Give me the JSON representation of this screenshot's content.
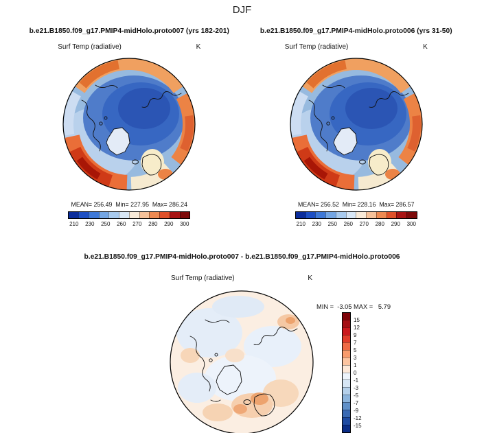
{
  "title": "DJF",
  "panels": [
    {
      "header": "b.e21.B1850.f09_g17.PMIP4-midHolo.proto007 (yrs 182-201)",
      "field_label": "Surf Temp (radiative)",
      "units": "K",
      "stats": "MEAN= 256.49  Min= 227.95  Max= 286.24"
    },
    {
      "header": "b.e21.B1850.f09_g17.PMIP4-midHolo.proto006 (yrs 31-50)",
      "field_label": "Surf Temp (radiative)",
      "units": "K",
      "stats": "MEAN= 256.52  Min= 228.16  Max= 286.57"
    }
  ],
  "diff": {
    "header": "b.e21.B1850.f09_g17.PMIP4-midHolo.proto007 - b.e21.B1850.f09_g17.PMIP4-midHolo.proto006",
    "field_label": "Surf Temp (radiative)",
    "units": "K",
    "minmax": "MIN =  -3.05 MAX =   5.79"
  },
  "scale_temp": {
    "colors": [
      "#0b2d9c",
      "#1d4fc4",
      "#3f79d8",
      "#74a6e4",
      "#a8caee",
      "#d8e7f6",
      "#f8ead8",
      "#f6c29a",
      "#ee8a52",
      "#df512a",
      "#a81414",
      "#7d0a0a"
    ],
    "labels": [
      "210",
      "230",
      "250",
      "260",
      "270",
      "280",
      "290",
      "300"
    ]
  },
  "scale_diff": {
    "colors": [
      "#7e0308",
      "#a50f15",
      "#cb181d",
      "#e13b2a",
      "#ef6a45",
      "#f89b6c",
      "#fcc4a0",
      "#fde8d8",
      "#eef4fb",
      "#d7e6f5",
      "#b5d0ea",
      "#8cb4dc",
      "#6090c8",
      "#3a6ab4",
      "#1e4ba2",
      "#0a2d86"
    ],
    "labels": [
      "15",
      "12",
      "9",
      "7",
      "5",
      "3",
      "1",
      "0",
      "-1",
      "-3",
      "-5",
      "-7",
      "-9",
      "-12",
      "-15"
    ]
  },
  "chart_data": [
    {
      "type": "heatmap",
      "subtype": "north-polar-stereographic-map",
      "season": "DJF",
      "title": "b.e21.B1850.f09_g17.PMIP4-midHolo.proto007 (yrs 182-201)",
      "field": "Surf Temp (radiative)",
      "units": "K",
      "mean": 256.49,
      "min": 227.95,
      "max": 286.24,
      "colorbar_ticks": [
        210,
        230,
        250,
        260,
        270,
        280,
        290,
        300
      ],
      "legend_position": "below"
    },
    {
      "type": "heatmap",
      "subtype": "north-polar-stereographic-map",
      "season": "DJF",
      "title": "b.e21.B1850.f09_g17.PMIP4-midHolo.proto006 (yrs 31-50)",
      "field": "Surf Temp (radiative)",
      "units": "K",
      "mean": 256.52,
      "min": 228.16,
      "max": 286.57,
      "colorbar_ticks": [
        210,
        230,
        250,
        260,
        270,
        280,
        290,
        300
      ],
      "legend_position": "below"
    },
    {
      "type": "heatmap",
      "subtype": "north-polar-stereographic-map",
      "season": "DJF",
      "title": "b.e21.B1850.f09_g17.PMIP4-midHolo.proto007 - b.e21.B1850.f09_g17.PMIP4-midHolo.proto006",
      "field": "Surf Temp (radiative)",
      "units": "K",
      "min": -3.05,
      "max": 5.79,
      "colorbar_ticks": [
        15,
        12,
        9,
        7,
        5,
        3,
        1,
        0,
        -1,
        -3,
        -5,
        -7,
        -9,
        -12,
        -15
      ],
      "legend_position": "right-vertical"
    }
  ]
}
